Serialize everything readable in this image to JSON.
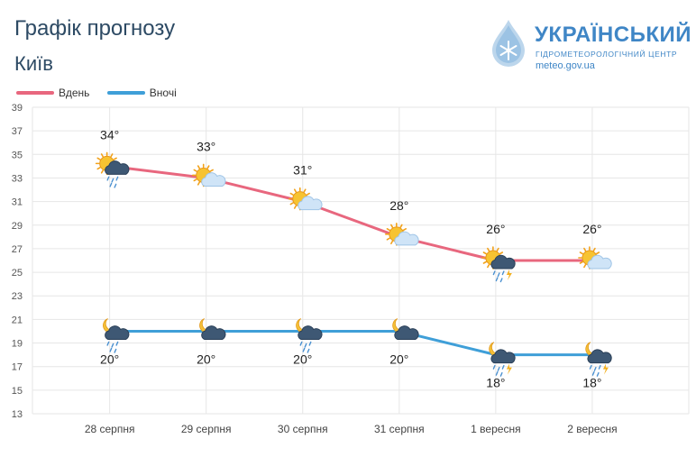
{
  "header": {
    "title": "Графік прогнозу",
    "city": "Київ"
  },
  "logo": {
    "name": "УКРАЇНСЬКИЙ",
    "subtitle": "ГІДРОМЕТЕОРОЛОГІЧНИЙ ЦЕНТР",
    "url": "meteo.gov.ua",
    "color": "#3f86c6"
  },
  "legend": {
    "items": [
      {
        "label": "Вдень",
        "color": "#e8677e"
      },
      {
        "label": "Вночі",
        "color": "#3f9fd8"
      }
    ]
  },
  "chart_data": {
    "type": "line",
    "title": "Графік прогнозу",
    "subtitle": "Київ",
    "categories": [
      "28 серпня",
      "29 серпня",
      "30 серпня",
      "31 серпня",
      "1 вересня",
      "2 вересня"
    ],
    "ylim": [
      13,
      39
    ],
    "yticks": [
      13,
      15,
      17,
      19,
      21,
      23,
      25,
      27,
      29,
      31,
      33,
      35,
      37,
      39
    ],
    "grid": true,
    "unit": "°",
    "series": [
      {
        "name": "Вдень",
        "color": "#e8677e",
        "values": [
          34,
          33,
          31,
          28,
          26,
          26
        ],
        "icons": [
          "sun-cloud-rain-icon",
          "sun-cloud-icon",
          "sun-cloud-icon",
          "sun-cloud-icon",
          "sun-cloud-thunder-rain-icon",
          "sun-cloud-icon"
        ]
      },
      {
        "name": "Вночі",
        "color": "#3f9fd8",
        "values": [
          20,
          20,
          20,
          20,
          18,
          18
        ],
        "icons": [
          "moon-cloud-rain-icon",
          "moon-cloud-icon",
          "moon-cloud-rain-icon",
          "moon-cloud-icon",
          "moon-cloud-thunder-rain-icon",
          "moon-cloud-thunder-rain-icon"
        ]
      }
    ]
  }
}
